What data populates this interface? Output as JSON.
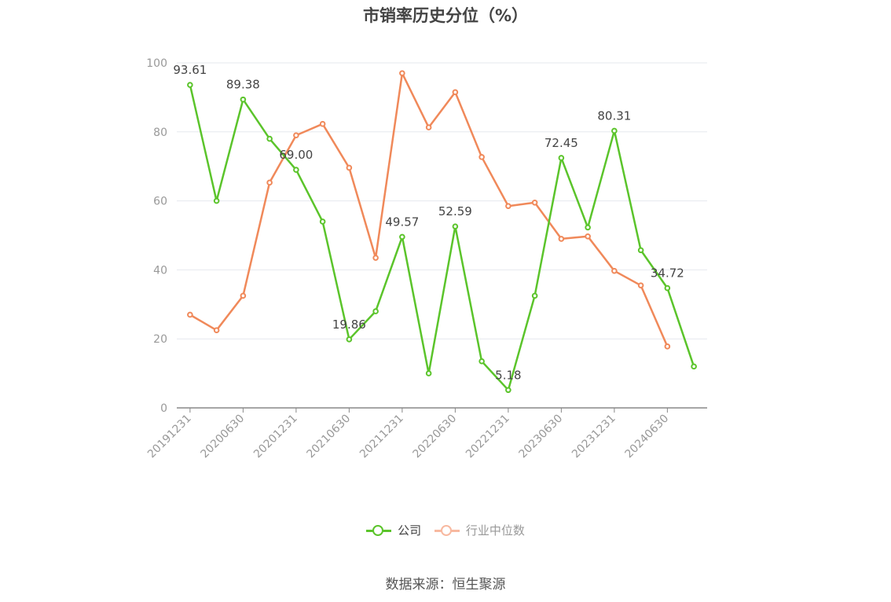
{
  "chart_data": {
    "type": "line",
    "title": "市销率历史分位（%）",
    "ylim": [
      0,
      100
    ],
    "yticks": [
      0,
      20,
      40,
      60,
      80,
      100
    ],
    "x": [
      "20191231",
      "20200331",
      "20200630",
      "20200930",
      "20201231",
      "20210331",
      "20210630",
      "20210930",
      "20211231",
      "20220331",
      "20220630",
      "20220930",
      "20221231",
      "20230331",
      "20230630",
      "20230930",
      "20231231",
      "20240331",
      "20240630",
      "20240930"
    ],
    "xtick_labels": [
      "20191231",
      "20200630",
      "20201231",
      "20210630",
      "20211231",
      "20220630",
      "20221231",
      "20230630",
      "20231231",
      "20240630"
    ],
    "grid": true,
    "legend_position": "bottom",
    "series": [
      {
        "name": "公司",
        "color": "#5bc42b",
        "values": [
          93.61,
          60.0,
          89.38,
          78.0,
          69.0,
          54.0,
          19.86,
          28.0,
          49.57,
          10.0,
          52.59,
          13.5,
          5.18,
          32.5,
          72.45,
          52.3,
          80.31,
          45.7,
          34.72,
          12.0
        ],
        "labels": {
          "0": "93.61",
          "2": "89.38",
          "4": "69.00",
          "6": "19.86",
          "8": "49.57",
          "10": "52.59",
          "12": "5.18",
          "14": "72.45",
          "16": "80.31",
          "18": "34.72"
        }
      },
      {
        "name": "行业中位数",
        "color": "#f0895a",
        "values": [
          27.0,
          22.5,
          32.5,
          65.3,
          79.0,
          82.3,
          69.6,
          43.5,
          97.0,
          81.3,
          91.5,
          72.7,
          58.5,
          59.5,
          49.0,
          49.7,
          39.7,
          35.5,
          17.8,
          null
        ]
      }
    ]
  },
  "legend": {
    "company_label": "公司",
    "industry_label": "行业中位数",
    "industry_swatch_color": "#f8b9a0"
  },
  "source_text": "数据来源：恒生聚源"
}
